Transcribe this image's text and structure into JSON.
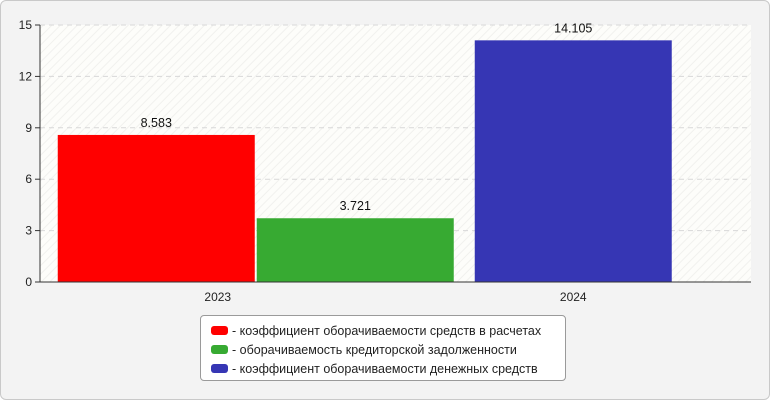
{
  "chart_data": {
    "type": "bar",
    "categories": [
      "2023",
      "2024"
    ],
    "series": [
      {
        "name": "коэффициент оборачиваемости средств в расчетах",
        "color": "#ff0000",
        "values": [
          8.583,
          null
        ]
      },
      {
        "name": "оборачиваемость кредиторской задолженности",
        "color": "#37aa32",
        "values": [
          3.721,
          null
        ]
      },
      {
        "name": "коэффициент оборачиваемости денежных средств",
        "color": "#3636b4",
        "values": [
          null,
          14.105
        ]
      }
    ],
    "bars": [
      {
        "category": "2023",
        "series": 0,
        "value": 8.583,
        "label": "8.583"
      },
      {
        "category": "2023",
        "series": 1,
        "value": 3.721,
        "label": "3.721"
      },
      {
        "category": "2024",
        "series": 2,
        "value": 14.105,
        "label": "14.105"
      }
    ],
    "yticks": [
      "0",
      "3",
      "6",
      "9",
      "12",
      "15"
    ],
    "ylim": [
      0,
      15
    ],
    "grid": true,
    "legend_position": "bottom-center",
    "legend_prefix": "- "
  }
}
